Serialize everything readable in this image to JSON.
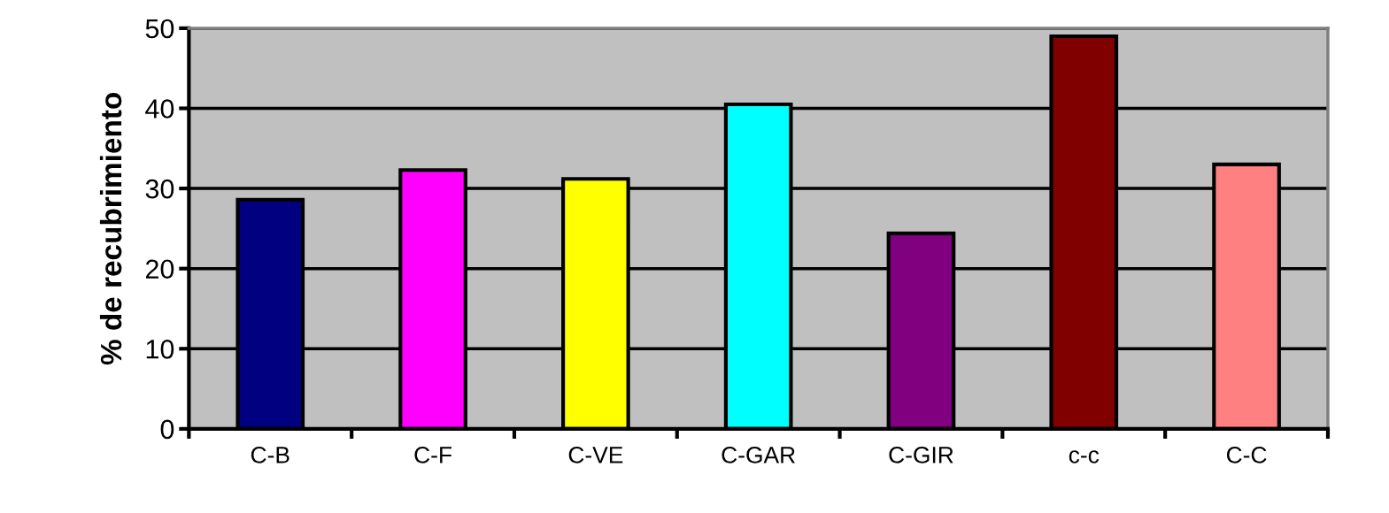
{
  "chart_data": {
    "type": "bar",
    "ylabel": "% de recubrimiento",
    "categories": [
      "C-B",
      "C-F",
      "C-VE",
      "C-GAR",
      "C-GIR",
      "c-c",
      "C-C"
    ],
    "values": [
      28.6,
      32.3,
      31.2,
      40.5,
      24.4,
      49.0,
      33.0
    ],
    "colors": [
      "#000080",
      "#ff00ff",
      "#ffff00",
      "#00ffff",
      "#800080",
      "#800000",
      "#ff8080"
    ],
    "ylim": [
      0,
      50
    ],
    "yticks": [
      0,
      10,
      20,
      30,
      40,
      50
    ],
    "grid": "y"
  }
}
